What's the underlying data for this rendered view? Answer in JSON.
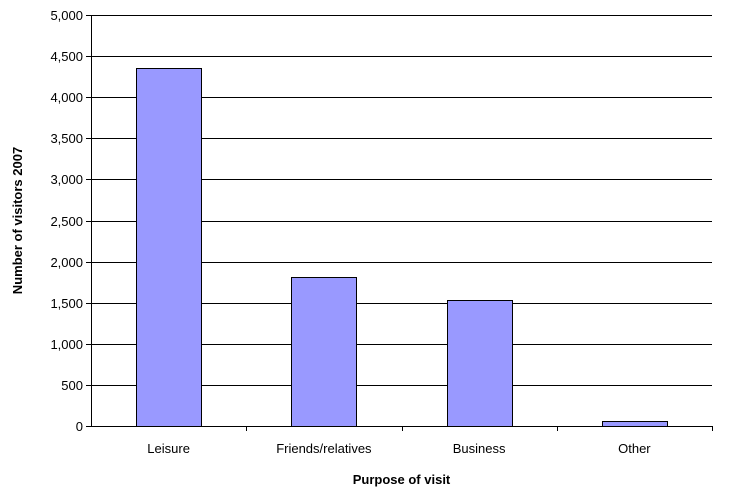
{
  "chart_data": {
    "type": "bar",
    "title": "",
    "xlabel": "Purpose of visit",
    "ylabel": "Number of visitors 2007",
    "categories": [
      "Leisure",
      "Friends/relatives",
      "Business",
      "Other"
    ],
    "values": [
      4350,
      1810,
      1530,
      60
    ],
    "ylim": [
      0,
      5000
    ],
    "yticks": [
      0,
      500,
      1000,
      1500,
      2000,
      2500,
      3000,
      3500,
      4000,
      4500,
      5000
    ],
    "ytick_labels": [
      "0",
      "500",
      "1,000",
      "1,500",
      "2,000",
      "2,500",
      "3,000",
      "3,500",
      "4,000",
      "4,500",
      "5,000"
    ],
    "grid": true,
    "legend": "none",
    "colors": {
      "bar": "#9999ff",
      "grid": "#000000"
    }
  }
}
